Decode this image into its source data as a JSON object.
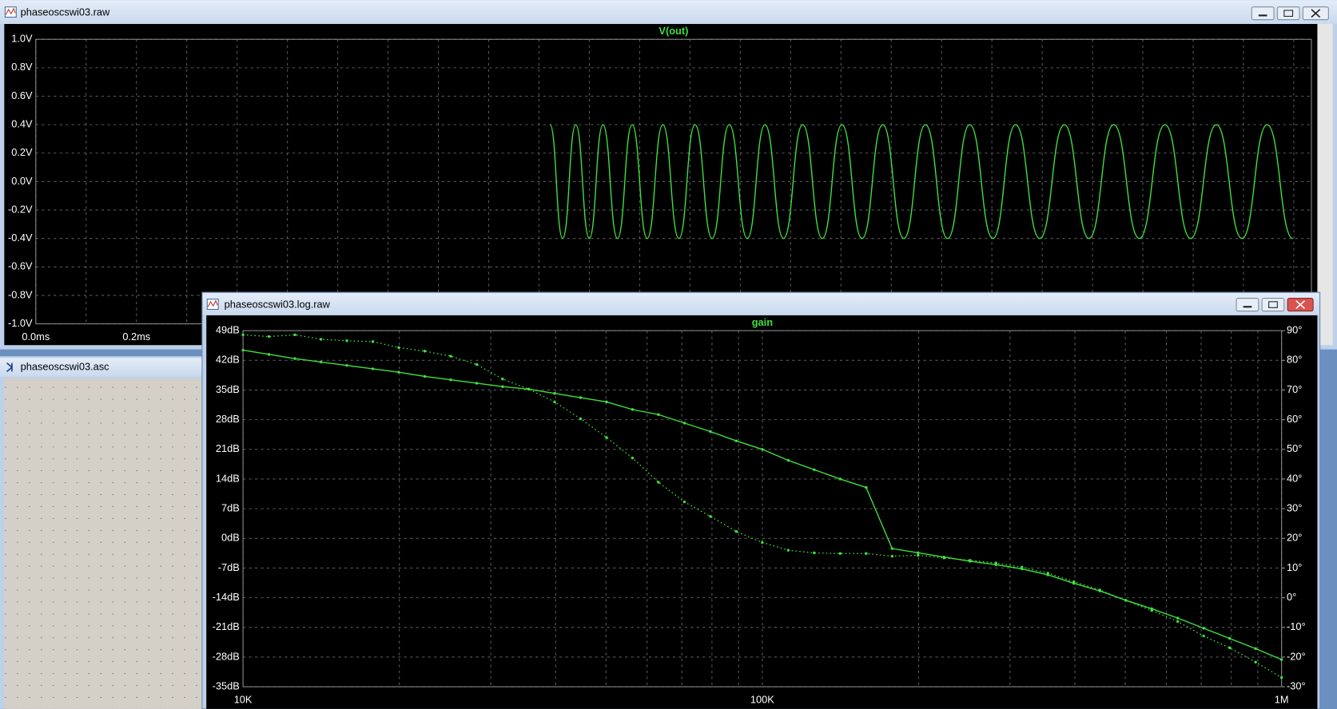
{
  "windows": [
    {
      "title": "phaseoscswi03.raw"
    },
    {
      "title": "phaseoscswi03.asc"
    },
    {
      "title": "phaseoscswi03.log.raw"
    }
  ],
  "chart_data": [
    {
      "type": "line",
      "xlim": [
        0,
        2.535
      ],
      "xticks": [
        {
          "value": 0,
          "label": "0.0ms"
        },
        {
          "value": 0.2,
          "label": "0.2ms"
        }
      ],
      "xgrid": [
        0.1,
        0.3,
        0.4,
        0.5,
        0.6,
        0.7,
        0.8,
        0.9,
        1.0,
        1.1,
        1.2,
        1.3,
        1.4,
        1.5,
        1.6,
        1.7,
        1.8,
        1.9,
        2.0,
        2.1,
        2.2,
        2.3,
        2.4,
        2.5
      ],
      "ylim": [
        -1,
        1
      ],
      "yticks": [
        {
          "value": 1.0,
          "label": "1.0V"
        },
        {
          "value": 0.8,
          "label": "0.8V"
        },
        {
          "value": 0.6,
          "label": "0.6V"
        },
        {
          "value": 0.4,
          "label": "0.4V"
        },
        {
          "value": 0.2,
          "label": "0.2V"
        },
        {
          "value": 0,
          "label": "0.0V"
        },
        {
          "value": -0.2,
          "label": "-0.2V"
        },
        {
          "value": -0.4,
          "label": "-0.4V"
        },
        {
          "value": -0.6,
          "label": "-0.6V"
        },
        {
          "value": -0.8,
          "label": "-0.8V"
        },
        {
          "value": -1.0,
          "label": "-1.0V"
        }
      ],
      "grid": true,
      "series": [
        {
          "name": "V(out)",
          "color": "#3fe03f",
          "smooth": true,
          "x": [
            1.022,
            1.047,
            1.073,
            1.1,
            1.127,
            1.156,
            1.185,
            1.215,
            1.246,
            1.278,
            1.31,
            1.344,
            1.378,
            1.414,
            1.449,
            1.486,
            1.524,
            1.563,
            1.602,
            1.642,
            1.683,
            1.725,
            1.768,
            1.812,
            1.856,
            1.902,
            1.947,
            1.995,
            2.044,
            2.093,
            2.142,
            2.193,
            2.244,
            2.295,
            2.346,
            2.397,
            2.447,
            2.498
          ],
          "values": [
            0.4,
            -0.4,
            0.4,
            -0.4,
            0.4,
            -0.4,
            0.4,
            -0.4,
            0.4,
            -0.4,
            0.4,
            -0.4,
            0.4,
            -0.4,
            0.4,
            -0.4,
            0.4,
            -0.4,
            0.4,
            -0.4,
            0.4,
            -0.4,
            0.4,
            -0.4,
            0.4,
            -0.4,
            0.4,
            -0.4,
            0.4,
            -0.4,
            0.4,
            -0.4,
            0.4,
            -0.4,
            0.4,
            -0.4,
            0.4,
            -0.4
          ]
        }
      ]
    },
    {
      "type": "line",
      "xscale": "log",
      "xlim": [
        10000,
        1000000
      ],
      "xticks": [
        {
          "value": 10000,
          "label": "10K"
        },
        {
          "value": 100000,
          "label": "100K"
        },
        {
          "value": 1000000,
          "label": "1M"
        }
      ],
      "xgrid": [
        20000,
        30000,
        40000,
        50000,
        60000,
        70000,
        80000,
        90000,
        200000,
        300000,
        400000,
        500000,
        600000,
        700000,
        800000,
        900000
      ],
      "ylim": [
        -35,
        49
      ],
      "yticks": [
        {
          "value": 49,
          "label": "49dB"
        },
        {
          "value": 42,
          "label": "42dB"
        },
        {
          "value": 35,
          "label": "35dB"
        },
        {
          "value": 28,
          "label": "28dB"
        },
        {
          "value": 21,
          "label": "21dB"
        },
        {
          "value": 14,
          "label": "14dB"
        },
        {
          "value": 7,
          "label": "7dB"
        },
        {
          "value": 0,
          "label": "0dB"
        },
        {
          "value": -7,
          "label": "-7dB"
        },
        {
          "value": -14,
          "label": "-14dB"
        },
        {
          "value": -21,
          "label": "-21dB"
        },
        {
          "value": -28,
          "label": "-28dB"
        },
        {
          "value": -35,
          "label": "-35dB"
        }
      ],
      "y2lim": [
        -30,
        90
      ],
      "y2ticks": [
        {
          "value": 90,
          "label": "90°"
        },
        {
          "value": 80,
          "label": "80°"
        },
        {
          "value": 70,
          "label": "70°"
        },
        {
          "value": 60,
          "label": "60°"
        },
        {
          "value": 50,
          "label": "50°"
        },
        {
          "value": 40,
          "label": "40°"
        },
        {
          "value": 30,
          "label": "30°"
        },
        {
          "value": 20,
          "label": "20°"
        },
        {
          "value": 10,
          "label": "10°"
        },
        {
          "value": 0,
          "label": "0°"
        },
        {
          "value": -10,
          "label": "-10°"
        },
        {
          "value": -20,
          "label": "-20°"
        },
        {
          "value": -30,
          "label": "-30°"
        }
      ],
      "grid": true,
      "x": [
        10000,
        11220,
        12589,
        14125,
        15849,
        17783,
        19953,
        22387,
        25119,
        28184,
        31623,
        35481,
        39811,
        44668,
        50119,
        56234,
        63096,
        70795,
        79433,
        89125,
        100000,
        112202,
        125893,
        141254,
        158489,
        177828,
        199526,
        223872,
        251189,
        281838,
        316228,
        354813,
        398107,
        446684,
        501187,
        562341,
        630957,
        707946,
        794328,
        891251,
        1000000
      ],
      "series": [
        {
          "name": "gain",
          "color": "#3fe03f",
          "values": [
            44.4,
            43.4,
            42.4,
            41.6,
            40.8,
            40.0,
            39.2,
            38.2,
            37.4,
            36.6,
            35.8,
            35.2,
            34.2,
            33.2,
            32.2,
            30.4,
            29.2,
            27.2,
            25.2,
            23.0,
            21.0,
            18.4,
            16.2,
            14.0,
            12.0,
            -2.4,
            -3.4,
            -4.4,
            -5.4,
            -6.2,
            -7.2,
            -8.6,
            -10.6,
            -12.4,
            -14.6,
            -16.6,
            -18.8,
            -21.2,
            -23.6,
            -26.0,
            -28.6
          ]
        },
        {
          "color": "#3fe03f",
          "axis": "y2",
          "dotted": true,
          "values": [
            88.6,
            88.0,
            88.6,
            87.1,
            86.6,
            86.3,
            84.3,
            83.1,
            81.4,
            78.6,
            73.7,
            70.3,
            66.0,
            60.3,
            54.0,
            47.1,
            38.9,
            32.3,
            27.4,
            22.3,
            18.6,
            16.0,
            15.1,
            14.9,
            14.9,
            14.0,
            14.3,
            13.4,
            12.6,
            11.7,
            10.3,
            8.3,
            5.4,
            2.6,
            -0.9,
            -4.3,
            -8.0,
            -12.9,
            -16.9,
            -21.7,
            -26.9
          ]
        }
      ]
    }
  ]
}
